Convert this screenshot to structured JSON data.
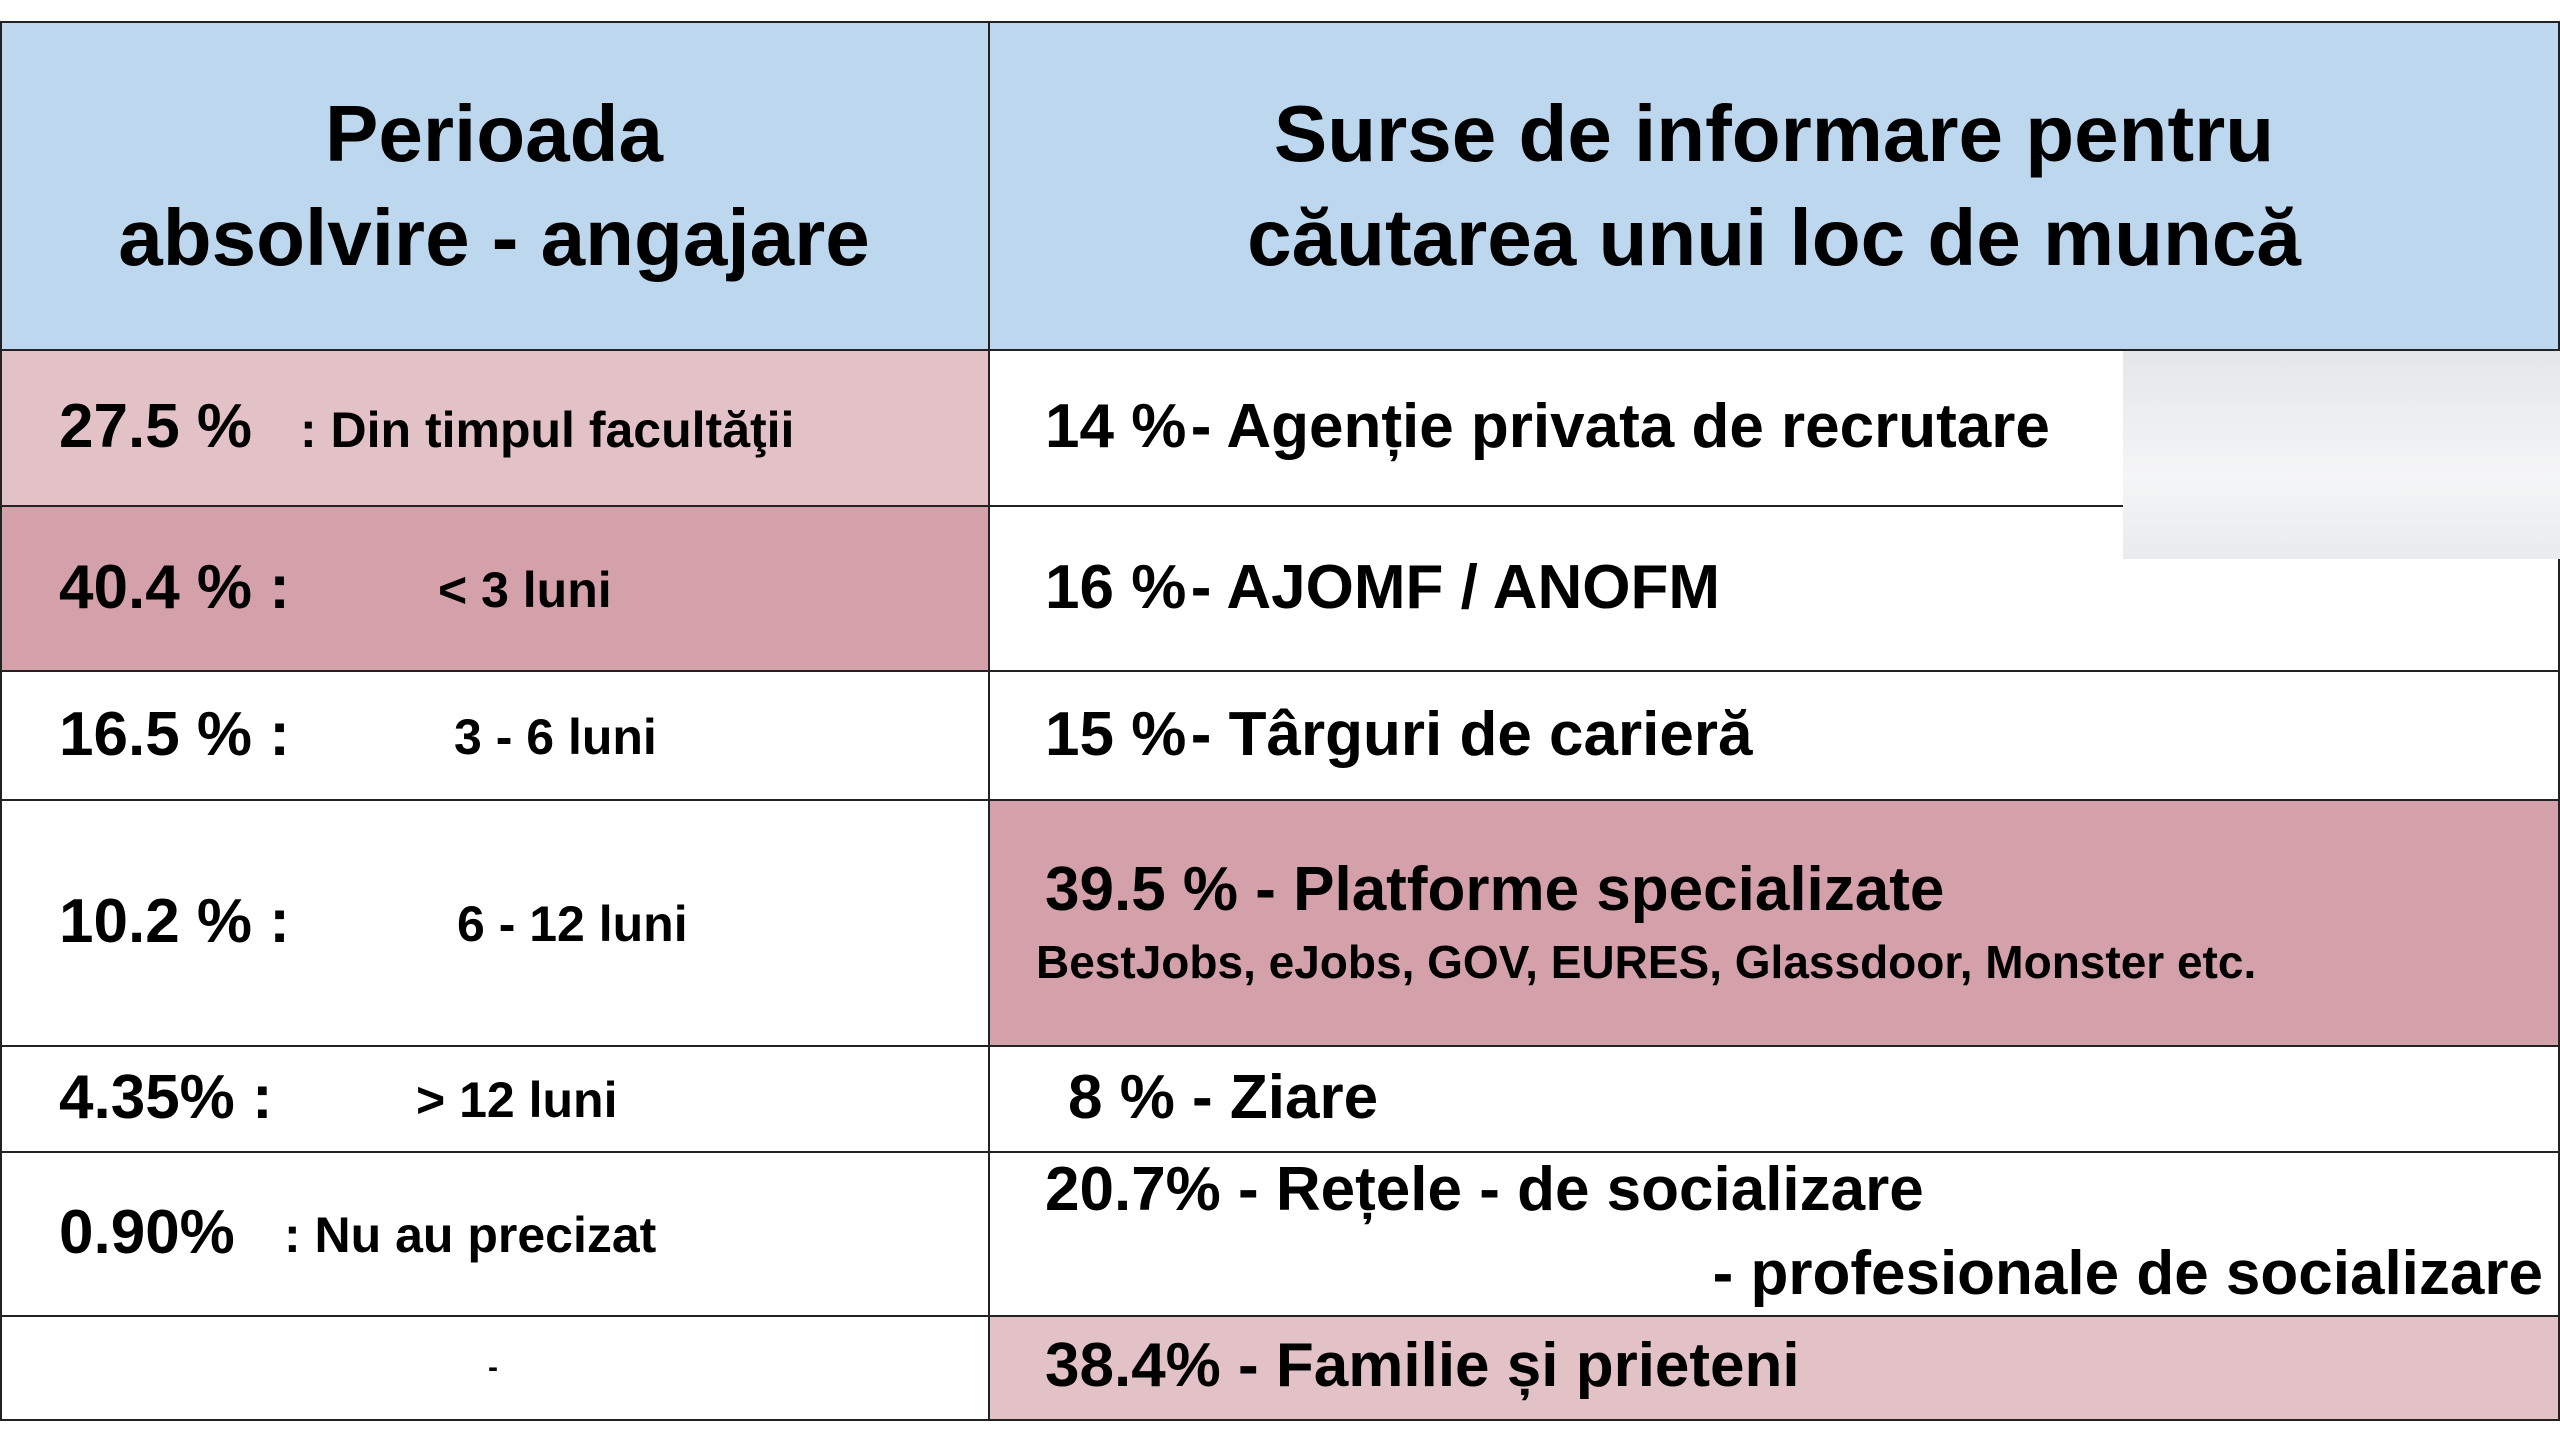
{
  "header": {
    "left": [
      "Perioada",
      "absolvire - angajare"
    ],
    "right": [
      "Surse de informare pentru",
      "căutarea unui loc de muncă"
    ]
  },
  "rows": [
    {
      "left": {
        "pct": "27.5 %",
        "text": ": Din timpul facultăţii"
      },
      "right": {
        "pct": "14 %",
        "text": "- Agenție privata de recrutare"
      }
    },
    {
      "left": {
        "pct": "40.4 % :",
        "text": "< 3 luni"
      },
      "right": {
        "pct": "16 %",
        "text": "- AJOMF /  ANOFM"
      }
    },
    {
      "left": {
        "pct": "16.5 % :",
        "text": "3 - 6 luni"
      },
      "right": {
        "pct": "15 %",
        "text": "- Târguri de carieră"
      }
    },
    {
      "left": {
        "pct": "10.2 % :",
        "text": "6 - 12 luni"
      },
      "right": {
        "text": "39.5 % - Platforme specializate",
        "sub": "BestJobs, eJobs, GOV, EURES, Glassdoor, Monster etc."
      }
    },
    {
      "left": {
        "pct": "4.35% :",
        "text": "> 12 luni"
      },
      "right": {
        "text": "8 % - Ziare"
      }
    },
    {
      "left": {
        "pct": "0.90%",
        "text": ": Nu au precizat"
      },
      "right": {
        "text": "20.7% - Rețele - de socializare",
        "sub": "- profesionale de socializare"
      }
    },
    {
      "left": {
        "text": "-"
      },
      "right": {
        "text": "38.4% - Familie și prieteni"
      }
    }
  ]
}
